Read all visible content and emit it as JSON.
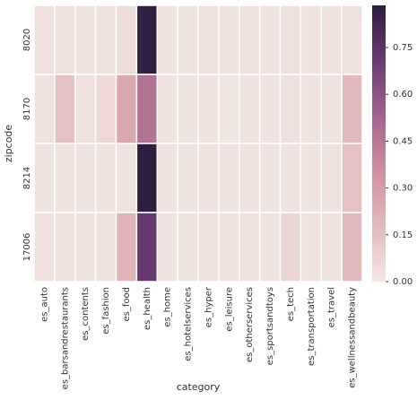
{
  "chart_data": {
    "type": "heatmap",
    "xlabel": "category",
    "ylabel": "zipcode",
    "categories": [
      "es_auto",
      "es_barsandrestaurants",
      "es_contents",
      "es_fashion",
      "es_food",
      "es_health",
      "es_home",
      "es_hotelservices",
      "es_hyper",
      "es_leisure",
      "es_otherservices",
      "es_sportsandtoys",
      "es_tech",
      "es_transportation",
      "es_travel",
      "es_wellnessandbeauty"
    ],
    "rows": [
      "8020",
      "8170",
      "8214",
      "17006"
    ],
    "values": [
      [
        0.03,
        0.03,
        0.02,
        0.03,
        0.05,
        0.87,
        0.02,
        0.02,
        0.03,
        0.02,
        0.03,
        0.02,
        0.03,
        0.02,
        0.02,
        0.03
      ],
      [
        0.02,
        0.15,
        0.03,
        0.06,
        0.25,
        0.47,
        0.02,
        0.02,
        0.02,
        0.01,
        0.02,
        0.02,
        0.03,
        0.02,
        0.02,
        0.18
      ],
      [
        0.02,
        0.02,
        0.02,
        0.02,
        0.02,
        0.88,
        0.02,
        0.02,
        0.02,
        0.02,
        0.02,
        0.02,
        0.02,
        0.02,
        0.02,
        0.15
      ],
      [
        0.03,
        0.03,
        0.02,
        0.03,
        0.2,
        0.72,
        0.02,
        0.02,
        0.02,
        0.02,
        0.02,
        0.02,
        0.07,
        0.02,
        0.02,
        0.18
      ]
    ],
    "clim": [
      0,
      0.885
    ],
    "cticks": [
      {
        "value": 0,
        "label": "0.00"
      },
      {
        "value": 0.15,
        "label": "0.15"
      },
      {
        "value": 0.3,
        "label": "0.30"
      },
      {
        "value": 0.45,
        "label": "0.45"
      },
      {
        "value": 0.6,
        "label": "0.60"
      },
      {
        "value": 0.75,
        "label": "0.75"
      }
    ],
    "colors": [
      "#f2e7e4",
      "#e2bbbb",
      "#cf8fa1",
      "#a2648e",
      "#6b3a73",
      "#2d1e3e"
    ]
  }
}
